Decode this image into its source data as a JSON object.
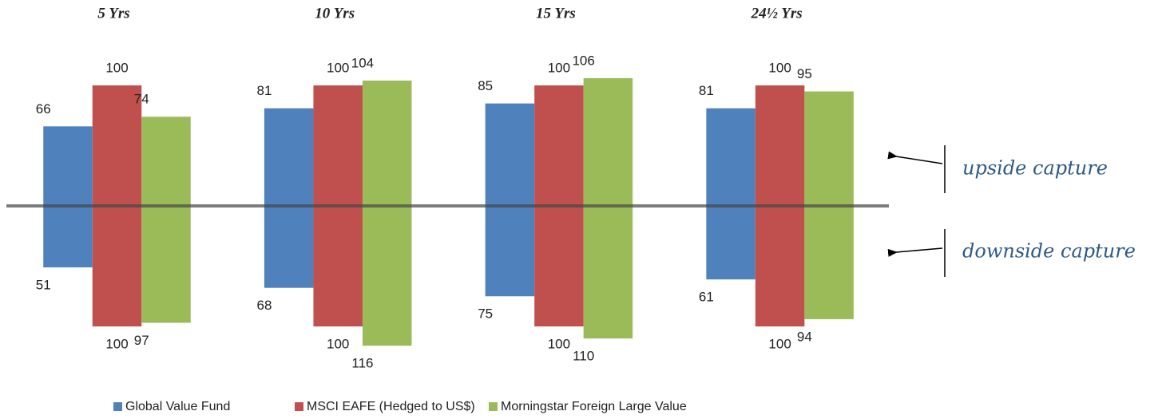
{
  "chart_data": {
    "type": "bar",
    "categories": [
      "5 Yrs",
      "10 Yrs",
      "15 Yrs",
      "24½ Yrs"
    ],
    "series": [
      {
        "name": "Global Value Fund",
        "color": "#4f81bd",
        "values": [
          66,
          81,
          85,
          81
        ],
        "downside": [
          51,
          68,
          75,
          61
        ]
      },
      {
        "name": "MSCI EAFE (Hedged to US$)",
        "color": "#c0504d",
        "values": [
          100,
          100,
          100,
          100
        ],
        "downside": [
          100,
          100,
          100,
          100
        ]
      },
      {
        "name": "Morningstar Foreign Large Value",
        "color": "#9bbb59",
        "values": [
          74,
          104,
          106,
          95
        ],
        "downside": [
          97,
          116,
          110,
          94
        ]
      }
    ],
    "annotations": [
      "upside capture",
      "downside capture"
    ]
  }
}
